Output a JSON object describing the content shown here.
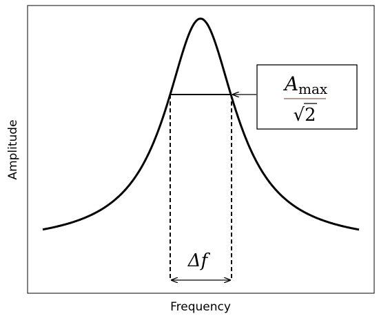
{
  "axes": {
    "y_label": "Amplitude",
    "x_label": "Frequency"
  },
  "annotations": {
    "bandwidth": "Δf",
    "half_power": {
      "symbol": "A",
      "subscript": "max",
      "denominator": "√2"
    }
  }
}
